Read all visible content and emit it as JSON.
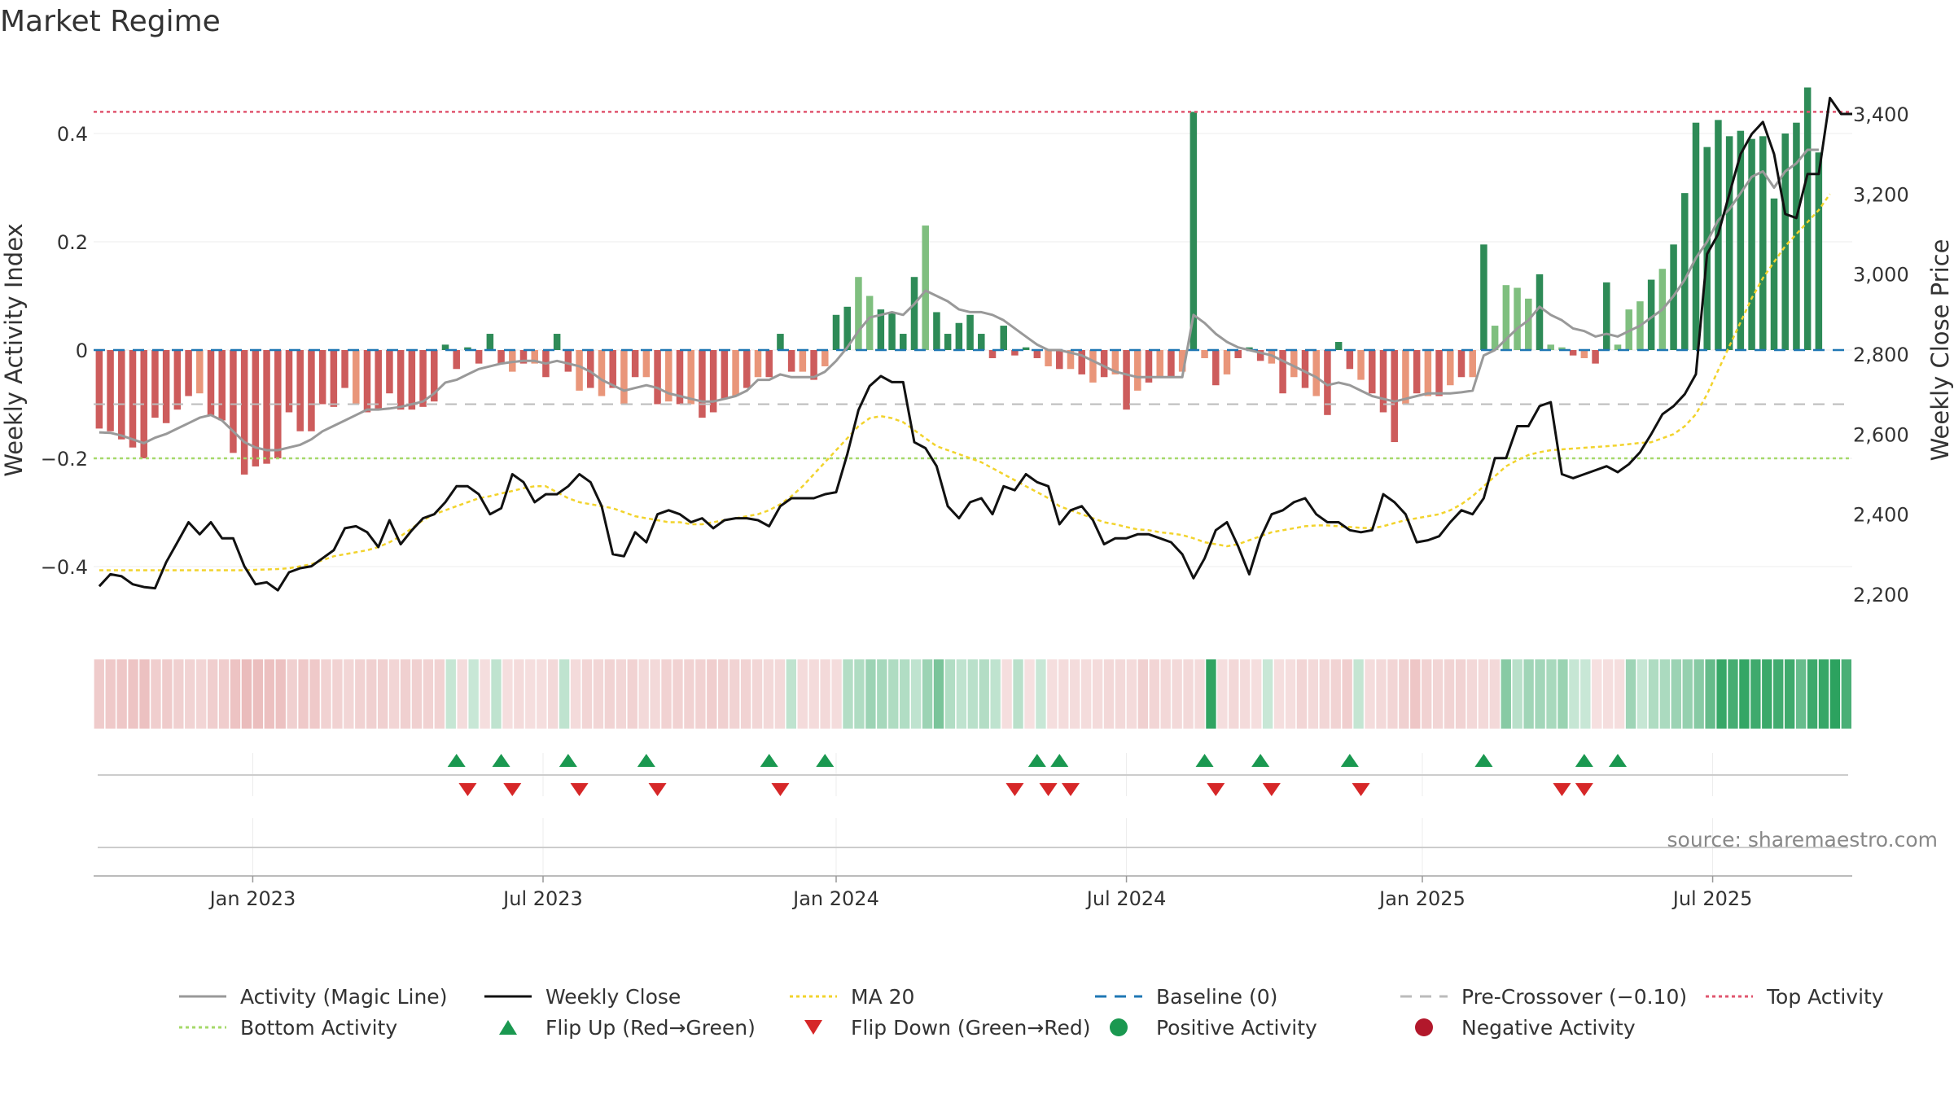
{
  "title": "Market Regime",
  "source_text": "source: sharemaestro.com",
  "colors": {
    "strong_green": "#2e8b57",
    "light_green": "#7fbf7f",
    "red": "#cd5c5c",
    "salmon": "#e9967a",
    "magic_line": "#999999",
    "close": "#111111",
    "ma20": "#f2d32c",
    "baseline": "#1f77b4",
    "pre_crossover": "#bbbbbb",
    "top": "#e0566f",
    "bottom": "#a6d96a",
    "flip_up": "#1a9850",
    "flip_down": "#d62728"
  },
  "chart_data": {
    "type": "bar",
    "title": "Market Regime",
    "ylabel": "Weekly Activity Index",
    "y2label": "Weekly Close Price",
    "ylim": [
      -0.52,
      0.52
    ],
    "y2lim": [
      2100,
      3490
    ],
    "yticks": [
      {
        "value": 0.4,
        "label": "0.4"
      },
      {
        "value": 0.2,
        "label": "0.2"
      },
      {
        "value": 0,
        "label": "0"
      },
      {
        "value": -0.2,
        "label": "−0.2"
      },
      {
        "value": -0.4,
        "label": "−0.4"
      }
    ],
    "y2ticks": [
      {
        "value": 3400,
        "label": "3,400"
      },
      {
        "value": 3200,
        "label": "3,200"
      },
      {
        "value": 3000,
        "label": "3,000"
      },
      {
        "value": 2800,
        "label": "2,800"
      },
      {
        "value": 2600,
        "label": "2,600"
      },
      {
        "value": 2400,
        "label": "2,400"
      },
      {
        "value": 2200,
        "label": "2,200"
      }
    ],
    "xticks": [
      {
        "week": 28.5,
        "label": "Jan 2023"
      },
      {
        "week": 80.5,
        "label": "Jul 2023"
      },
      {
        "week": 133,
        "label": "Jan 2024"
      },
      {
        "week": 185,
        "label": "Jul 2024"
      },
      {
        "week": 238,
        "label": "Jan 2025"
      },
      {
        "week": 290,
        "label": "Jul 2025"
      }
    ],
    "n_weeks": 315,
    "week_step": 2,
    "reference_lines": {
      "top": 0.44,
      "pre_crossover": -0.1,
      "bottom": -0.2,
      "baseline": 0
    },
    "activity": [
      -0.145,
      -0.15,
      -0.165,
      -0.18,
      -0.2,
      -0.125,
      -0.135,
      -0.11,
      -0.085,
      -0.08,
      -0.12,
      -0.13,
      -0.19,
      -0.23,
      -0.215,
      -0.21,
      -0.2,
      -0.115,
      -0.15,
      -0.15,
      -0.1,
      -0.105,
      -0.07,
      -0.1,
      -0.115,
      -0.11,
      -0.08,
      -0.11,
      -0.11,
      -0.105,
      -0.095,
      0.01,
      -0.035,
      0.005,
      -0.025,
      0.03,
      -0.025,
      -0.04,
      -0.025,
      -0.025,
      -0.05,
      0.03,
      -0.04,
      -0.075,
      -0.07,
      -0.085,
      -0.07,
      -0.1,
      -0.05,
      -0.05,
      -0.1,
      -0.095,
      -0.1,
      -0.1,
      -0.125,
      -0.115,
      -0.09,
      -0.085,
      -0.07,
      -0.05,
      -0.05,
      0.03,
      -0.04,
      -0.04,
      -0.055,
      -0.03,
      0.065,
      0.08,
      0.135,
      0.1,
      0.075,
      0.07,
      0.03,
      0.135,
      0.23,
      0.07,
      0.03,
      0.05,
      0.065,
      0.03,
      -0.015,
      0.045,
      -0.01,
      0.005,
      -0.015,
      -0.03,
      -0.035,
      -0.035,
      -0.045,
      -0.06,
      -0.05,
      -0.045,
      -0.11,
      -0.075,
      -0.06,
      -0.05,
      -0.05,
      -0.04,
      0.44,
      -0.015,
      -0.065,
      -0.045,
      -0.015,
      0.005,
      -0.02,
      -0.025,
      -0.08,
      -0.05,
      -0.07,
      -0.085,
      -0.12,
      0.015,
      -0.035,
      -0.055,
      -0.08,
      -0.115,
      -0.17,
      -0.1,
      -0.08,
      -0.085,
      -0.085,
      -0.065,
      -0.05,
      -0.05,
      0.195,
      0.045,
      0.12,
      0.115,
      0.095,
      0.14,
      0.01,
      0.005,
      -0.01,
      -0.015,
      -0.025,
      0.125,
      0.01,
      0.075,
      0.09,
      0.13,
      0.15,
      0.195,
      0.29,
      0.42,
      0.375,
      0.425,
      0.395,
      0.405,
      0.39,
      0.395,
      0.28,
      0.4,
      0.42,
      0.485,
      0.365
    ],
    "magic_line": [
      -0.152,
      -0.153,
      -0.158,
      -0.165,
      -0.172,
      -0.162,
      -0.155,
      -0.145,
      -0.135,
      -0.125,
      -0.12,
      -0.13,
      -0.15,
      -0.17,
      -0.18,
      -0.185,
      -0.185,
      -0.18,
      -0.175,
      -0.165,
      -0.15,
      -0.14,
      -0.13,
      -0.12,
      -0.11,
      -0.11,
      -0.108,
      -0.105,
      -0.1,
      -0.095,
      -0.08,
      -0.06,
      -0.055,
      -0.045,
      -0.035,
      -0.03,
      -0.025,
      -0.022,
      -0.02,
      -0.02,
      -0.025,
      -0.02,
      -0.025,
      -0.03,
      -0.04,
      -0.055,
      -0.065,
      -0.075,
      -0.07,
      -0.065,
      -0.07,
      -0.08,
      -0.085,
      -0.09,
      -0.095,
      -0.095,
      -0.09,
      -0.085,
      -0.075,
      -0.055,
      -0.055,
      -0.045,
      -0.05,
      -0.05,
      -0.05,
      -0.04,
      -0.02,
      0.005,
      0.035,
      0.06,
      0.065,
      0.07,
      0.065,
      0.085,
      0.11,
      0.1,
      0.09,
      0.075,
      0.07,
      0.07,
      0.065,
      0.055,
      0.04,
      0.025,
      0.01,
      0.0,
      0.0,
      -0.005,
      -0.01,
      -0.02,
      -0.03,
      -0.04,
      -0.045,
      -0.05,
      -0.05,
      -0.05,
      -0.05,
      -0.05,
      0.065,
      0.05,
      0.03,
      0.015,
      0.005,
      0.0,
      -0.005,
      -0.01,
      -0.02,
      -0.03,
      -0.04,
      -0.05,
      -0.065,
      -0.06,
      -0.065,
      -0.075,
      -0.085,
      -0.09,
      -0.095,
      -0.09,
      -0.085,
      -0.08,
      -0.08,
      -0.08,
      -0.078,
      -0.075,
      -0.01,
      0.0,
      0.02,
      0.04,
      0.055,
      0.08,
      0.065,
      0.055,
      0.04,
      0.035,
      0.025,
      0.03,
      0.025,
      0.035,
      0.045,
      0.06,
      0.075,
      0.1,
      0.13,
      0.17,
      0.2,
      0.24,
      0.26,
      0.29,
      0.32,
      0.33,
      0.3,
      0.33,
      0.345,
      0.37,
      0.37
    ],
    "weekly_close": [
      2220,
      2250,
      2245,
      2225,
      2218,
      2215,
      2280,
      2330,
      2380,
      2350,
      2380,
      2340,
      2340,
      2270,
      2225,
      2230,
      2210,
      2255,
      2265,
      2270,
      2290,
      2310,
      2365,
      2370,
      2355,
      2318,
      2385,
      2325,
      2360,
      2390,
      2400,
      2430,
      2470,
      2470,
      2450,
      2400,
      2415,
      2500,
      2480,
      2430,
      2450,
      2450,
      2470,
      2500,
      2480,
      2420,
      2300,
      2295,
      2355,
      2330,
      2400,
      2410,
      2400,
      2380,
      2390,
      2365,
      2385,
      2390,
      2390,
      2385,
      2370,
      2420,
      2440,
      2440,
      2440,
      2450,
      2455,
      2550,
      2660,
      2720,
      2745,
      2730,
      2730,
      2580,
      2565,
      2520,
      2420,
      2390,
      2430,
      2440,
      2400,
      2470,
      2460,
      2500,
      2480,
      2470,
      2375,
      2410,
      2420,
      2385,
      2325,
      2340,
      2340,
      2350,
      2350,
      2340,
      2330,
      2300,
      2240,
      2290,
      2360,
      2380,
      2320,
      2250,
      2340,
      2400,
      2410,
      2430,
      2440,
      2400,
      2380,
      2380,
      2360,
      2355,
      2360,
      2450,
      2430,
      2400,
      2330,
      2335,
      2345,
      2380,
      2410,
      2400,
      2440,
      2540,
      2540,
      2620,
      2620,
      2670,
      2680,
      2500,
      2490,
      2500,
      2510,
      2520,
      2505,
      2525,
      2555,
      2600,
      2650,
      2670,
      2700,
      2750,
      3050,
      3100,
      3200,
      3300,
      3350,
      3380,
      3300,
      3150,
      3140,
      3250,
      3250,
      3440,
      3400,
      3400
    ],
    "ma20": [
      2260,
      2260,
      2260,
      2260,
      2260,
      2260,
      2260,
      2260,
      2260,
      2260,
      2260,
      2260,
      2260,
      2260,
      2261,
      2262,
      2263,
      2265,
      2270,
      2275,
      2285,
      2295,
      2300,
      2305,
      2310,
      2318,
      2330,
      2345,
      2365,
      2385,
      2400,
      2410,
      2420,
      2430,
      2440,
      2445,
      2452,
      2458,
      2465,
      2470,
      2470,
      2455,
      2440,
      2430,
      2425,
      2420,
      2415,
      2405,
      2395,
      2390,
      2385,
      2380,
      2380,
      2375,
      2375,
      2380,
      2385,
      2390,
      2395,
      2400,
      2410,
      2425,
      2445,
      2470,
      2500,
      2530,
      2560,
      2590,
      2620,
      2640,
      2645,
      2640,
      2630,
      2610,
      2590,
      2570,
      2560,
      2550,
      2540,
      2530,
      2515,
      2500,
      2485,
      2470,
      2455,
      2440,
      2420,
      2410,
      2400,
      2390,
      2380,
      2375,
      2368,
      2362,
      2360,
      2355,
      2352,
      2348,
      2340,
      2330,
      2325,
      2320,
      2325,
      2335,
      2345,
      2355,
      2360,
      2365,
      2370,
      2372,
      2372,
      2370,
      2368,
      2366,
      2365,
      2370,
      2378,
      2385,
      2390,
      2395,
      2400,
      2410,
      2425,
      2445,
      2470,
      2495,
      2520,
      2535,
      2548,
      2555,
      2560,
      2562,
      2564,
      2566,
      2568,
      2570,
      2572,
      2575,
      2578,
      2580,
      2590,
      2600,
      2620,
      2650,
      2700,
      2760,
      2820,
      2880,
      2940,
      2990,
      3030,
      3070,
      3100,
      3130,
      3160,
      3200
    ],
    "flip_up_weeks": [
      65,
      73,
      85,
      99,
      121,
      131,
      169,
      173,
      199,
      209,
      225,
      249,
      267,
      273
    ],
    "flip_down_weeks": [
      67,
      75,
      87,
      101,
      123,
      165,
      171,
      175,
      201,
      211,
      227,
      263,
      267
    ],
    "legend": [
      {
        "label": "Activity (Magic Line)",
        "kind": "line",
        "color": "#999999",
        "dash": ""
      },
      {
        "label": "Weekly Close",
        "kind": "line",
        "color": "#111111",
        "dash": ""
      },
      {
        "label": "MA 20",
        "kind": "line",
        "color": "#f2d32c",
        "dash": "4 4"
      },
      {
        "label": "Baseline (0)",
        "kind": "line",
        "color": "#1f77b4",
        "dash": "14 10"
      },
      {
        "label": "Pre-Crossover (−0.10)",
        "kind": "line",
        "color": "#bbbbbb",
        "dash": "14 10"
      },
      {
        "label": "Top Activity",
        "kind": "line",
        "color": "#e0566f",
        "dash": "4 4"
      },
      {
        "label": "Bottom Activity",
        "kind": "line",
        "color": "#a6d96a",
        "dash": "4 4"
      },
      {
        "label": "Flip Up (Red→Green)",
        "kind": "tri-up",
        "color": "#1a9850",
        "dash": ""
      },
      {
        "label": "Flip Down (Green→Red)",
        "kind": "tri-down",
        "color": "#d62728",
        "dash": ""
      },
      {
        "label": "Positive Activity",
        "kind": "dot",
        "color": "#1a9850",
        "dash": ""
      },
      {
        "label": "Negative Activity",
        "kind": "dot",
        "color": "#b2182b",
        "dash": ""
      }
    ]
  }
}
